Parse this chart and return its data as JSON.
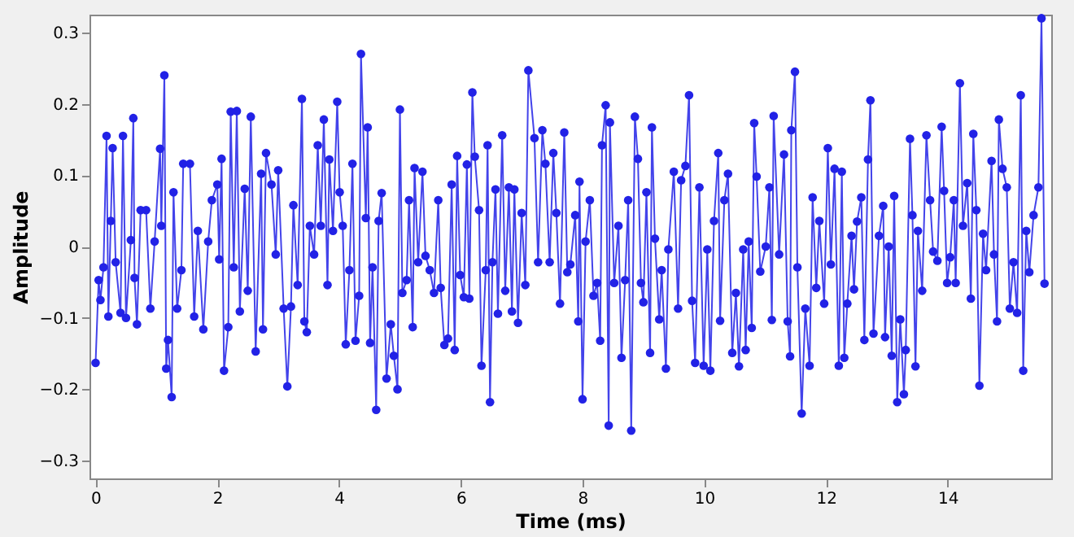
{
  "chart_data": {
    "type": "line",
    "xlabel": "Time (ms)",
    "ylabel": "Amplitude",
    "xlim": [
      -0.1,
      15.7
    ],
    "xticks": [
      0,
      2,
      4,
      6,
      8,
      10,
      12,
      14
    ],
    "ylim": [
      -0.325,
      0.325
    ],
    "yticks": [
      -0.3,
      -0.2,
      -0.1,
      0,
      0.1,
      0.2,
      0.3
    ],
    "grid": false,
    "legend": false,
    "marker": "circle",
    "line_style": "solid",
    "series": [
      {
        "color": "#2222e6",
        "x": [
          0.0,
          0.05,
          0.08,
          0.13,
          0.18,
          0.21,
          0.25,
          0.28,
          0.33,
          0.41,
          0.45,
          0.5,
          0.58,
          0.62,
          0.64,
          0.68,
          0.74,
          0.83,
          0.9,
          0.97,
          1.06,
          1.08,
          1.13,
          1.16,
          1.19,
          1.25,
          1.28,
          1.34,
          1.41,
          1.44,
          1.55,
          1.62,
          1.68,
          1.77,
          1.85,
          1.91,
          2.0,
          2.03,
          2.07,
          2.11,
          2.18,
          2.22,
          2.27,
          2.32,
          2.37,
          2.45,
          2.5,
          2.55,
          2.63,
          2.72,
          2.75,
          2.8,
          2.89,
          2.96,
          3.0,
          3.09,
          3.15,
          3.21,
          3.25,
          3.32,
          3.39,
          3.43,
          3.47,
          3.52,
          3.59,
          3.65,
          3.7,
          3.75,
          3.81,
          3.84,
          3.9,
          3.97,
          4.01,
          4.06,
          4.11,
          4.17,
          4.22,
          4.27,
          4.33,
          4.36,
          4.44,
          4.47,
          4.51,
          4.55,
          4.61,
          4.65,
          4.7,
          4.78,
          4.85,
          4.9,
          4.96,
          5.0,
          5.04,
          5.11,
          5.15,
          5.21,
          5.24,
          5.3,
          5.37,
          5.42,
          5.49,
          5.56,
          5.63,
          5.67,
          5.73,
          5.79,
          5.85,
          5.9,
          5.94,
          5.99,
          6.05,
          6.1,
          6.14,
          6.19,
          6.23,
          6.3,
          6.34,
          6.41,
          6.44,
          6.48,
          6.52,
          6.57,
          6.61,
          6.68,
          6.73,
          6.79,
          6.84,
          6.88,
          6.94,
          7.0,
          7.06,
          7.11,
          7.21,
          7.27,
          7.34,
          7.39,
          7.46,
          7.52,
          7.57,
          7.63,
          7.7,
          7.75,
          7.8,
          7.88,
          7.93,
          7.95,
          8.0,
          8.05,
          8.12,
          8.18,
          8.24,
          8.29,
          8.32,
          8.38,
          8.43,
          8.45,
          8.52,
          8.59,
          8.64,
          8.7,
          8.75,
          8.8,
          8.86,
          8.91,
          8.96,
          9.0,
          9.05,
          9.11,
          9.14,
          9.19,
          9.26,
          9.3,
          9.37,
          9.41,
          9.5,
          9.57,
          9.62,
          9.69,
          9.75,
          9.8,
          9.85,
          9.92,
          9.99,
          10.05,
          10.1,
          10.16,
          10.23,
          10.26,
          10.33,
          10.39,
          10.46,
          10.52,
          10.57,
          10.64,
          10.68,
          10.73,
          10.78,
          10.82,
          10.86,
          10.92,
          11.01,
          11.07,
          11.11,
          11.14,
          11.23,
          11.31,
          11.37,
          11.41,
          11.43,
          11.49,
          11.53,
          11.6,
          11.66,
          11.73,
          11.78,
          11.84,
          11.89,
          11.97,
          12.03,
          12.08,
          12.14,
          12.21,
          12.26,
          12.3,
          12.35,
          12.42,
          12.46,
          12.51,
          12.58,
          12.63,
          12.69,
          12.73,
          12.78,
          12.87,
          12.94,
          12.97,
          13.03,
          13.08,
          13.12,
          13.17,
          13.22,
          13.28,
          13.31,
          13.38,
          13.42,
          13.47,
          13.51,
          13.58,
          13.65,
          13.71,
          13.76,
          13.83,
          13.9,
          13.94,
          13.99,
          14.04,
          14.1,
          14.13,
          14.2,
          14.25,
          14.32,
          14.38,
          14.42,
          14.47,
          14.52,
          14.58,
          14.63,
          14.72,
          14.76,
          14.81,
          14.84,
          14.9,
          14.97,
          15.02,
          15.08,
          15.14,
          15.2,
          15.24,
          15.29,
          15.34,
          15.41,
          15.49,
          15.54,
          15.59
        ],
        "values": [
          -0.163,
          -0.047,
          -0.075,
          -0.029,
          0.155,
          -0.098,
          0.036,
          0.138,
          -0.022,
          -0.093,
          0.155,
          -0.1,
          0.009,
          0.18,
          -0.044,
          -0.109,
          0.051,
          0.051,
          -0.087,
          0.007,
          0.137,
          0.029,
          0.24,
          -0.171,
          -0.131,
          -0.211,
          0.076,
          -0.087,
          -0.033,
          0.116,
          0.116,
          -0.098,
          0.022,
          -0.116,
          0.007,
          0.065,
          0.087,
          -0.018,
          0.123,
          -0.174,
          -0.113,
          0.189,
          -0.029,
          0.19,
          -0.091,
          0.081,
          -0.062,
          0.182,
          -0.147,
          0.102,
          -0.116,
          0.131,
          0.087,
          -0.011,
          0.107,
          -0.087,
          -0.196,
          -0.084,
          0.058,
          -0.054,
          0.207,
          -0.105,
          -0.12,
          0.029,
          -0.011,
          0.142,
          0.029,
          0.178,
          -0.054,
          0.122,
          0.022,
          0.203,
          0.076,
          0.029,
          -0.137,
          -0.033,
          0.116,
          -0.132,
          -0.069,
          0.27,
          0.04,
          0.167,
          -0.135,
          -0.029,
          -0.229,
          0.036,
          0.075,
          -0.185,
          -0.109,
          -0.153,
          -0.2,
          0.192,
          -0.065,
          -0.047,
          0.065,
          -0.113,
          0.11,
          -0.022,
          0.105,
          -0.013,
          -0.033,
          -0.065,
          0.065,
          -0.058,
          -0.138,
          -0.129,
          0.087,
          -0.145,
          0.127,
          -0.04,
          -0.071,
          0.115,
          -0.073,
          0.216,
          0.126,
          0.051,
          -0.167,
          -0.033,
          0.142,
          -0.218,
          -0.022,
          0.08,
          -0.094,
          0.156,
          -0.062,
          0.083,
          -0.091,
          0.08,
          -0.107,
          0.047,
          -0.054,
          0.247,
          0.152,
          -0.022,
          0.163,
          0.116,
          -0.022,
          0.131,
          0.047,
          -0.08,
          0.16,
          -0.036,
          -0.025,
          0.044,
          -0.105,
          0.091,
          -0.214,
          0.007,
          0.065,
          -0.069,
          -0.051,
          -0.132,
          0.142,
          0.198,
          -0.251,
          0.174,
          -0.051,
          0.029,
          -0.156,
          -0.047,
          0.065,
          -0.258,
          0.182,
          0.123,
          -0.051,
          -0.078,
          0.076,
          -0.149,
          0.167,
          0.011,
          -0.102,
          -0.033,
          -0.171,
          -0.004,
          0.105,
          -0.087,
          0.093,
          0.113,
          0.212,
          -0.076,
          -0.163,
          0.083,
          -0.167,
          -0.004,
          -0.174,
          0.036,
          0.131,
          -0.104,
          0.065,
          0.102,
          -0.149,
          -0.065,
          -0.168,
          -0.004,
          -0.145,
          0.007,
          -0.114,
          0.173,
          0.098,
          -0.035,
          0,
          0.083,
          -0.103,
          0.183,
          -0.011,
          0.129,
          -0.105,
          -0.154,
          0.163,
          0.245,
          -0.029,
          -0.234,
          -0.087,
          -0.167,
          0.069,
          -0.058,
          0.036,
          -0.08,
          0.138,
          -0.025,
          0.109,
          -0.167,
          0.105,
          -0.156,
          -0.08,
          0.015,
          -0.06,
          0.035,
          0.069,
          -0.131,
          0.122,
          0.205,
          -0.122,
          0.015,
          0.057,
          -0.127,
          0,
          -0.153,
          0.071,
          -0.218,
          -0.102,
          -0.207,
          -0.145,
          0.151,
          0.044,
          -0.168,
          0.022,
          -0.062,
          0.156,
          0.065,
          -0.007,
          -0.02,
          0.168,
          0.078,
          -0.051,
          -0.015,
          0.065,
          -0.051,
          0.229,
          0.029,
          0.089,
          -0.073,
          0.158,
          0.051,
          -0.195,
          0.018,
          -0.033,
          0.12,
          -0.011,
          -0.105,
          0.178,
          0.109,
          0.083,
          -0.087,
          -0.022,
          -0.093,
          0.212,
          -0.174,
          0.022,
          -0.036,
          0.044,
          0.083,
          0.32,
          -0.052
        ]
      }
    ]
  }
}
